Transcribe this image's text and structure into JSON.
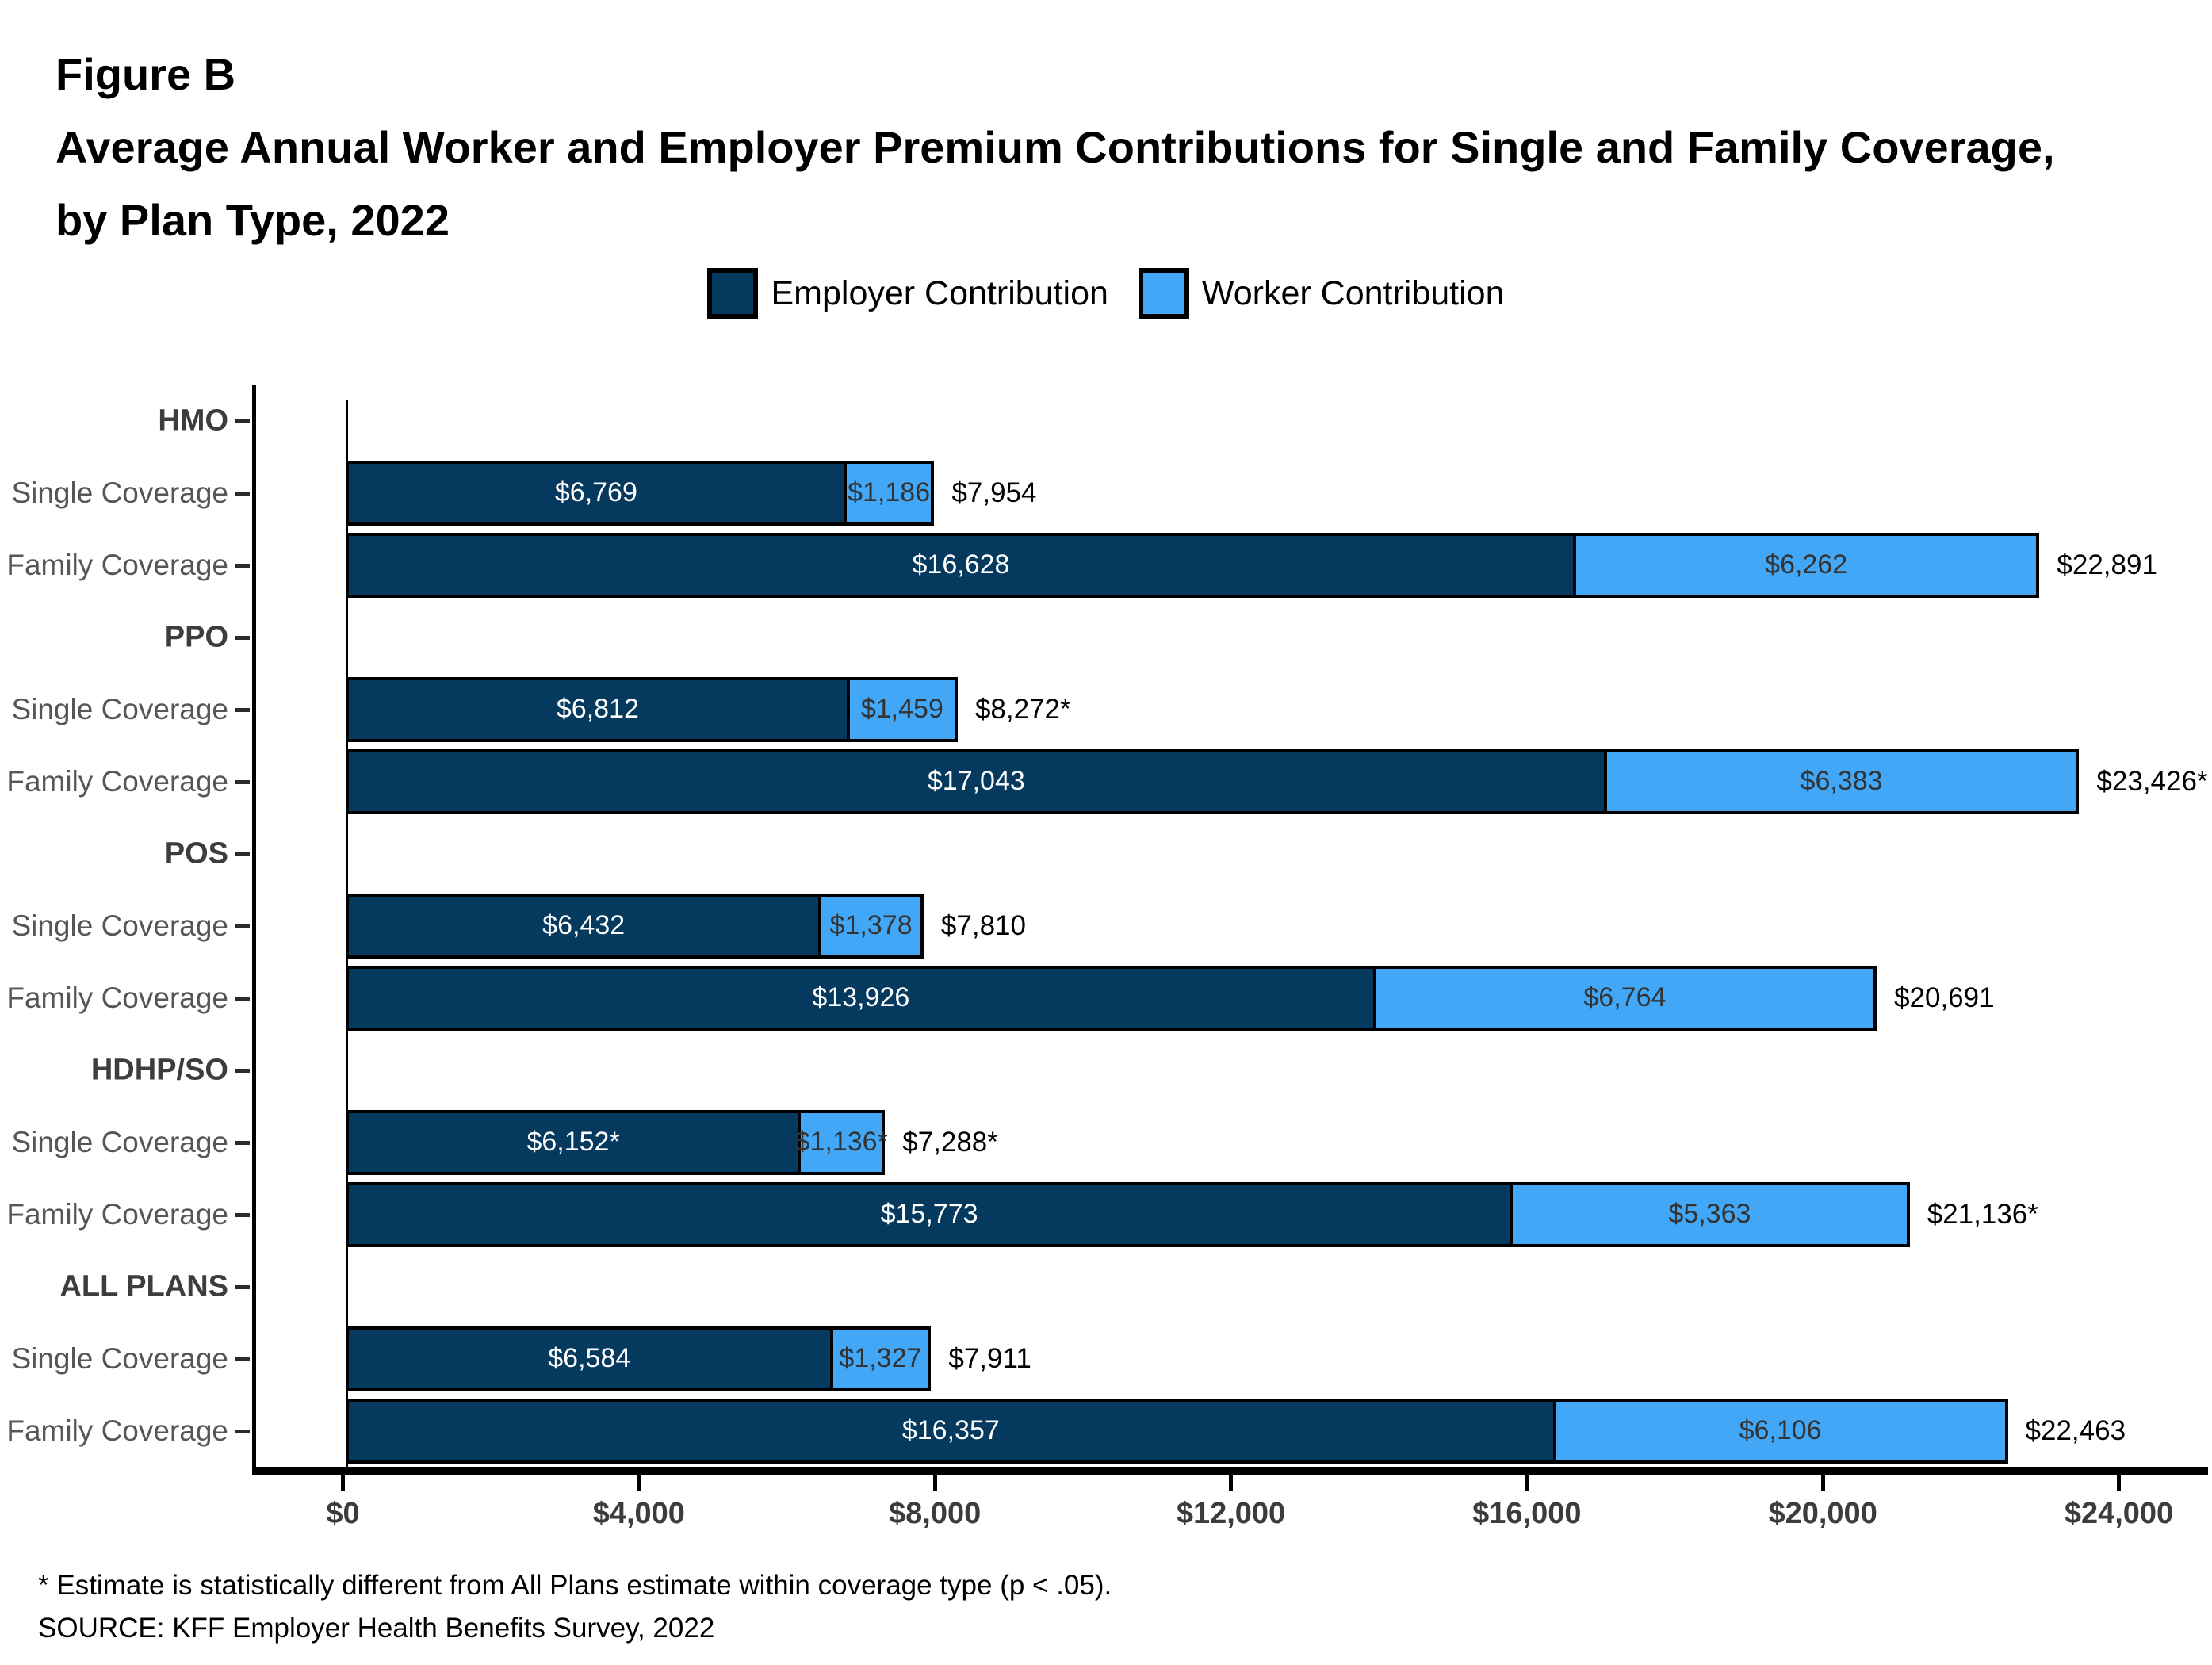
{
  "figure": {
    "label": "Figure B",
    "title_line1": "Average Annual Worker and Employer Premium Contributions for Single and Family Coverage,",
    "title_line2": "by Plan Type, 2022"
  },
  "legend": [
    {
      "label": "Employer Contribution",
      "color": "#053A5E"
    },
    {
      "label": "Worker Contribution",
      "color": "#41A7F6"
    }
  ],
  "footnotes": [
    "* Estimate is statistically different from All Plans estimate within coverage type (p < .05).",
    "SOURCE: KFF Employer Health Benefits Survey, 2022"
  ],
  "chart_data": {
    "type": "bar",
    "orientation": "horizontal",
    "stacked": true,
    "series_names": [
      "Employer Contribution",
      "Worker Contribution"
    ],
    "x_axis": {
      "min": 0,
      "max": 24000,
      "tick_step": 4000,
      "ticks": [
        "$0",
        "$4,000",
        "$8,000",
        "$12,000",
        "$16,000",
        "$20,000",
        "$24,000"
      ]
    },
    "groups": [
      {
        "plan": "HMO",
        "bars": [
          {
            "label": "Single Coverage",
            "employer": 6769,
            "worker": 1186,
            "total": 7954,
            "employer_text": "$6,769",
            "worker_text": "$1,186",
            "total_text": "$7,954"
          },
          {
            "label": "Family Coverage",
            "employer": 16628,
            "worker": 6262,
            "total": 22891,
            "employer_text": "$16,628",
            "worker_text": "$6,262",
            "total_text": "$22,891"
          }
        ]
      },
      {
        "plan": "PPO",
        "bars": [
          {
            "label": "Single Coverage",
            "employer": 6812,
            "worker": 1459,
            "total": 8272,
            "employer_text": "$6,812",
            "worker_text": "$1,459",
            "total_text": "$8,272*"
          },
          {
            "label": "Family Coverage",
            "employer": 17043,
            "worker": 6383,
            "total": 23426,
            "employer_text": "$17,043",
            "worker_text": "$6,383",
            "total_text": "$23,426*"
          }
        ]
      },
      {
        "plan": "POS",
        "bars": [
          {
            "label": "Single Coverage",
            "employer": 6432,
            "worker": 1378,
            "total": 7810,
            "employer_text": "$6,432",
            "worker_text": "$1,378",
            "total_text": "$7,810"
          },
          {
            "label": "Family Coverage",
            "employer": 13926,
            "worker": 6764,
            "total": 20691,
            "employer_text": "$13,926",
            "worker_text": "$6,764",
            "total_text": "$20,691"
          }
        ]
      },
      {
        "plan": "HDHP/SO",
        "bars": [
          {
            "label": "Single Coverage",
            "employer": 6152,
            "worker": 1136,
            "total": 7288,
            "employer_text": "$6,152*",
            "worker_text": "$1,136*",
            "total_text": "$7,288*"
          },
          {
            "label": "Family Coverage",
            "employer": 15773,
            "worker": 5363,
            "total": 21136,
            "employer_text": "$15,773",
            "worker_text": "$5,363",
            "total_text": "$21,136*"
          }
        ]
      },
      {
        "plan": "ALL PLANS",
        "bars": [
          {
            "label": "Single Coverage",
            "employer": 6584,
            "worker": 1327,
            "total": 7911,
            "employer_text": "$6,584",
            "worker_text": "$1,327",
            "total_text": "$7,911"
          },
          {
            "label": "Family Coverage",
            "employer": 16357,
            "worker": 6106,
            "total": 22463,
            "employer_text": "$16,357",
            "worker_text": "$6,106",
            "total_text": "$22,463"
          }
        ]
      }
    ]
  }
}
